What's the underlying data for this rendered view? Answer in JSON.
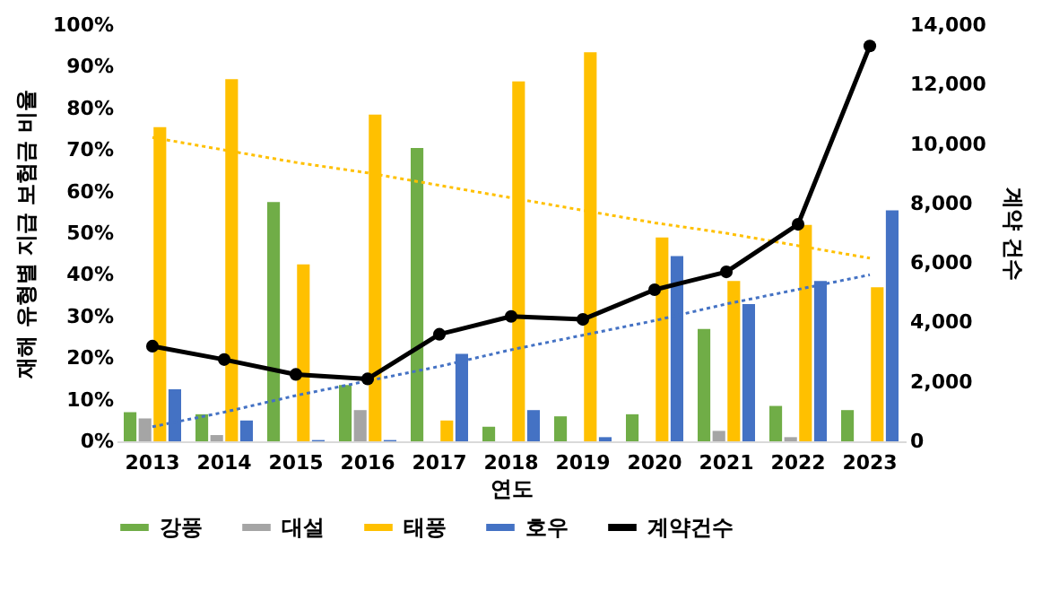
{
  "chart_data": {
    "type": "bar",
    "xlabel": "연도",
    "ylabel": "재해 유형별 지급 보험금 비율",
    "y2label": "계약 건수",
    "categories": [
      "2013",
      "2014",
      "2015",
      "2016",
      "2017",
      "2018",
      "2019",
      "2020",
      "2021",
      "2022",
      "2023"
    ],
    "series": [
      {
        "name": "강풍",
        "color": "#70ad47",
        "values": [
          7,
          6.5,
          57.5,
          13.5,
          70.5,
          3.5,
          6,
          6.5,
          27,
          8.5,
          7.5
        ]
      },
      {
        "name": "대설",
        "color": "#a5a5a5",
        "values": [
          5.5,
          1.5,
          0,
          7.5,
          null,
          null,
          0,
          null,
          2.5,
          1,
          null
        ]
      },
      {
        "name": "태풍",
        "color": "#ffc000",
        "values": [
          75.5,
          87,
          42.5,
          78.5,
          5,
          86.5,
          93.5,
          49,
          38.5,
          52,
          37
        ]
      },
      {
        "name": "호우",
        "color": "#4472c4",
        "values": [
          12.5,
          5,
          0.3,
          0.3,
          21,
          7.5,
          1,
          44.5,
          33,
          38.5,
          55.5
        ]
      },
      {
        "name": "계약건수",
        "type": "line",
        "axis": "y2",
        "color": "#000000",
        "marker": "circle",
        "line_style": "solid",
        "values": [
          3200,
          2750,
          2250,
          2100,
          3600,
          4200,
          4100,
          5100,
          5700,
          7300,
          13300
        ]
      },
      {
        "type": "line",
        "color": "#ffc000",
        "line_style": "dotted",
        "marker": "none",
        "values": [
          73,
          70,
          67,
          64.5,
          61.5,
          58.5,
          55.5,
          52.5,
          50,
          47,
          44
        ]
      },
      {
        "type": "line",
        "color": "#4472c4",
        "line_style": "dotted",
        "marker": "none",
        "values": [
          3.5,
          7,
          11,
          14.5,
          18,
          22,
          25.5,
          29,
          33,
          36.5,
          40
        ]
      }
    ],
    "ylim": [
      0,
      100
    ],
    "yticks": [
      {
        "value": 0,
        "label": "0%"
      },
      {
        "value": 10,
        "label": "10%"
      },
      {
        "value": 20,
        "label": "20%"
      },
      {
        "value": 30,
        "label": "30%"
      },
      {
        "value": 40,
        "label": "40%"
      },
      {
        "value": 50,
        "label": "50%"
      },
      {
        "value": 60,
        "label": "60%"
      },
      {
        "value": 70,
        "label": "70%"
      },
      {
        "value": 80,
        "label": "80%"
      },
      {
        "value": 90,
        "label": "90%"
      },
      {
        "value": 100,
        "label": "100%"
      }
    ],
    "y2lim": [
      0,
      14000
    ],
    "y2ticks": [
      0,
      {
        "value": 2000,
        "label": "2,000"
      },
      {
        "value": 4000,
        "label": "4,000"
      },
      {
        "value": 6000,
        "label": "6,000"
      },
      {
        "value": 8000,
        "label": "8,000"
      },
      {
        "value": 10000,
        "label": "10,000"
      },
      {
        "value": 12000,
        "label": "12,000"
      },
      {
        "value": 14000,
        "label": "14,000"
      }
    ],
    "grid": false,
    "legend": "bottom"
  }
}
